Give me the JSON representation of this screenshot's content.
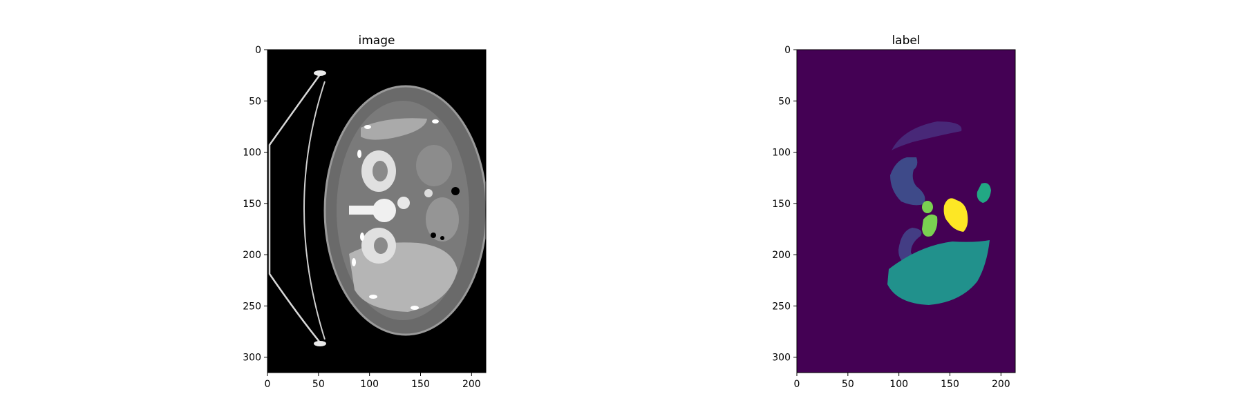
{
  "chart_data": [
    {
      "type": "heatmap",
      "title": "image",
      "colormap": "gray",
      "xlabel": "",
      "ylabel": "",
      "xlim": [
        0,
        214
      ],
      "ylim": [
        315,
        0
      ],
      "xticks": [
        0,
        50,
        100,
        150,
        200
      ],
      "yticks": [
        0,
        50,
        100,
        150,
        200,
        250,
        300
      ],
      "grid": false,
      "content": "axial CT slice of abdomen with curved support board on left"
    },
    {
      "type": "heatmap",
      "title": "label",
      "colormap": "viridis",
      "xlabel": "",
      "ylabel": "",
      "xlim": [
        0,
        214
      ],
      "ylim": [
        315,
        0
      ],
      "xticks": [
        0,
        50,
        100,
        150,
        200
      ],
      "yticks": [
        0,
        50,
        100,
        150,
        200,
        250,
        300
      ],
      "grid": false,
      "colors": {
        "background": "#440154",
        "spleen": "#482878",
        "kidney_upper": "#3e4a89",
        "kidney_lower": "#433d84",
        "liver": "#21918c",
        "kidney_small": "#22a884",
        "stomach_bits": "#7ad151",
        "aorta": "#fde725"
      }
    }
  ]
}
